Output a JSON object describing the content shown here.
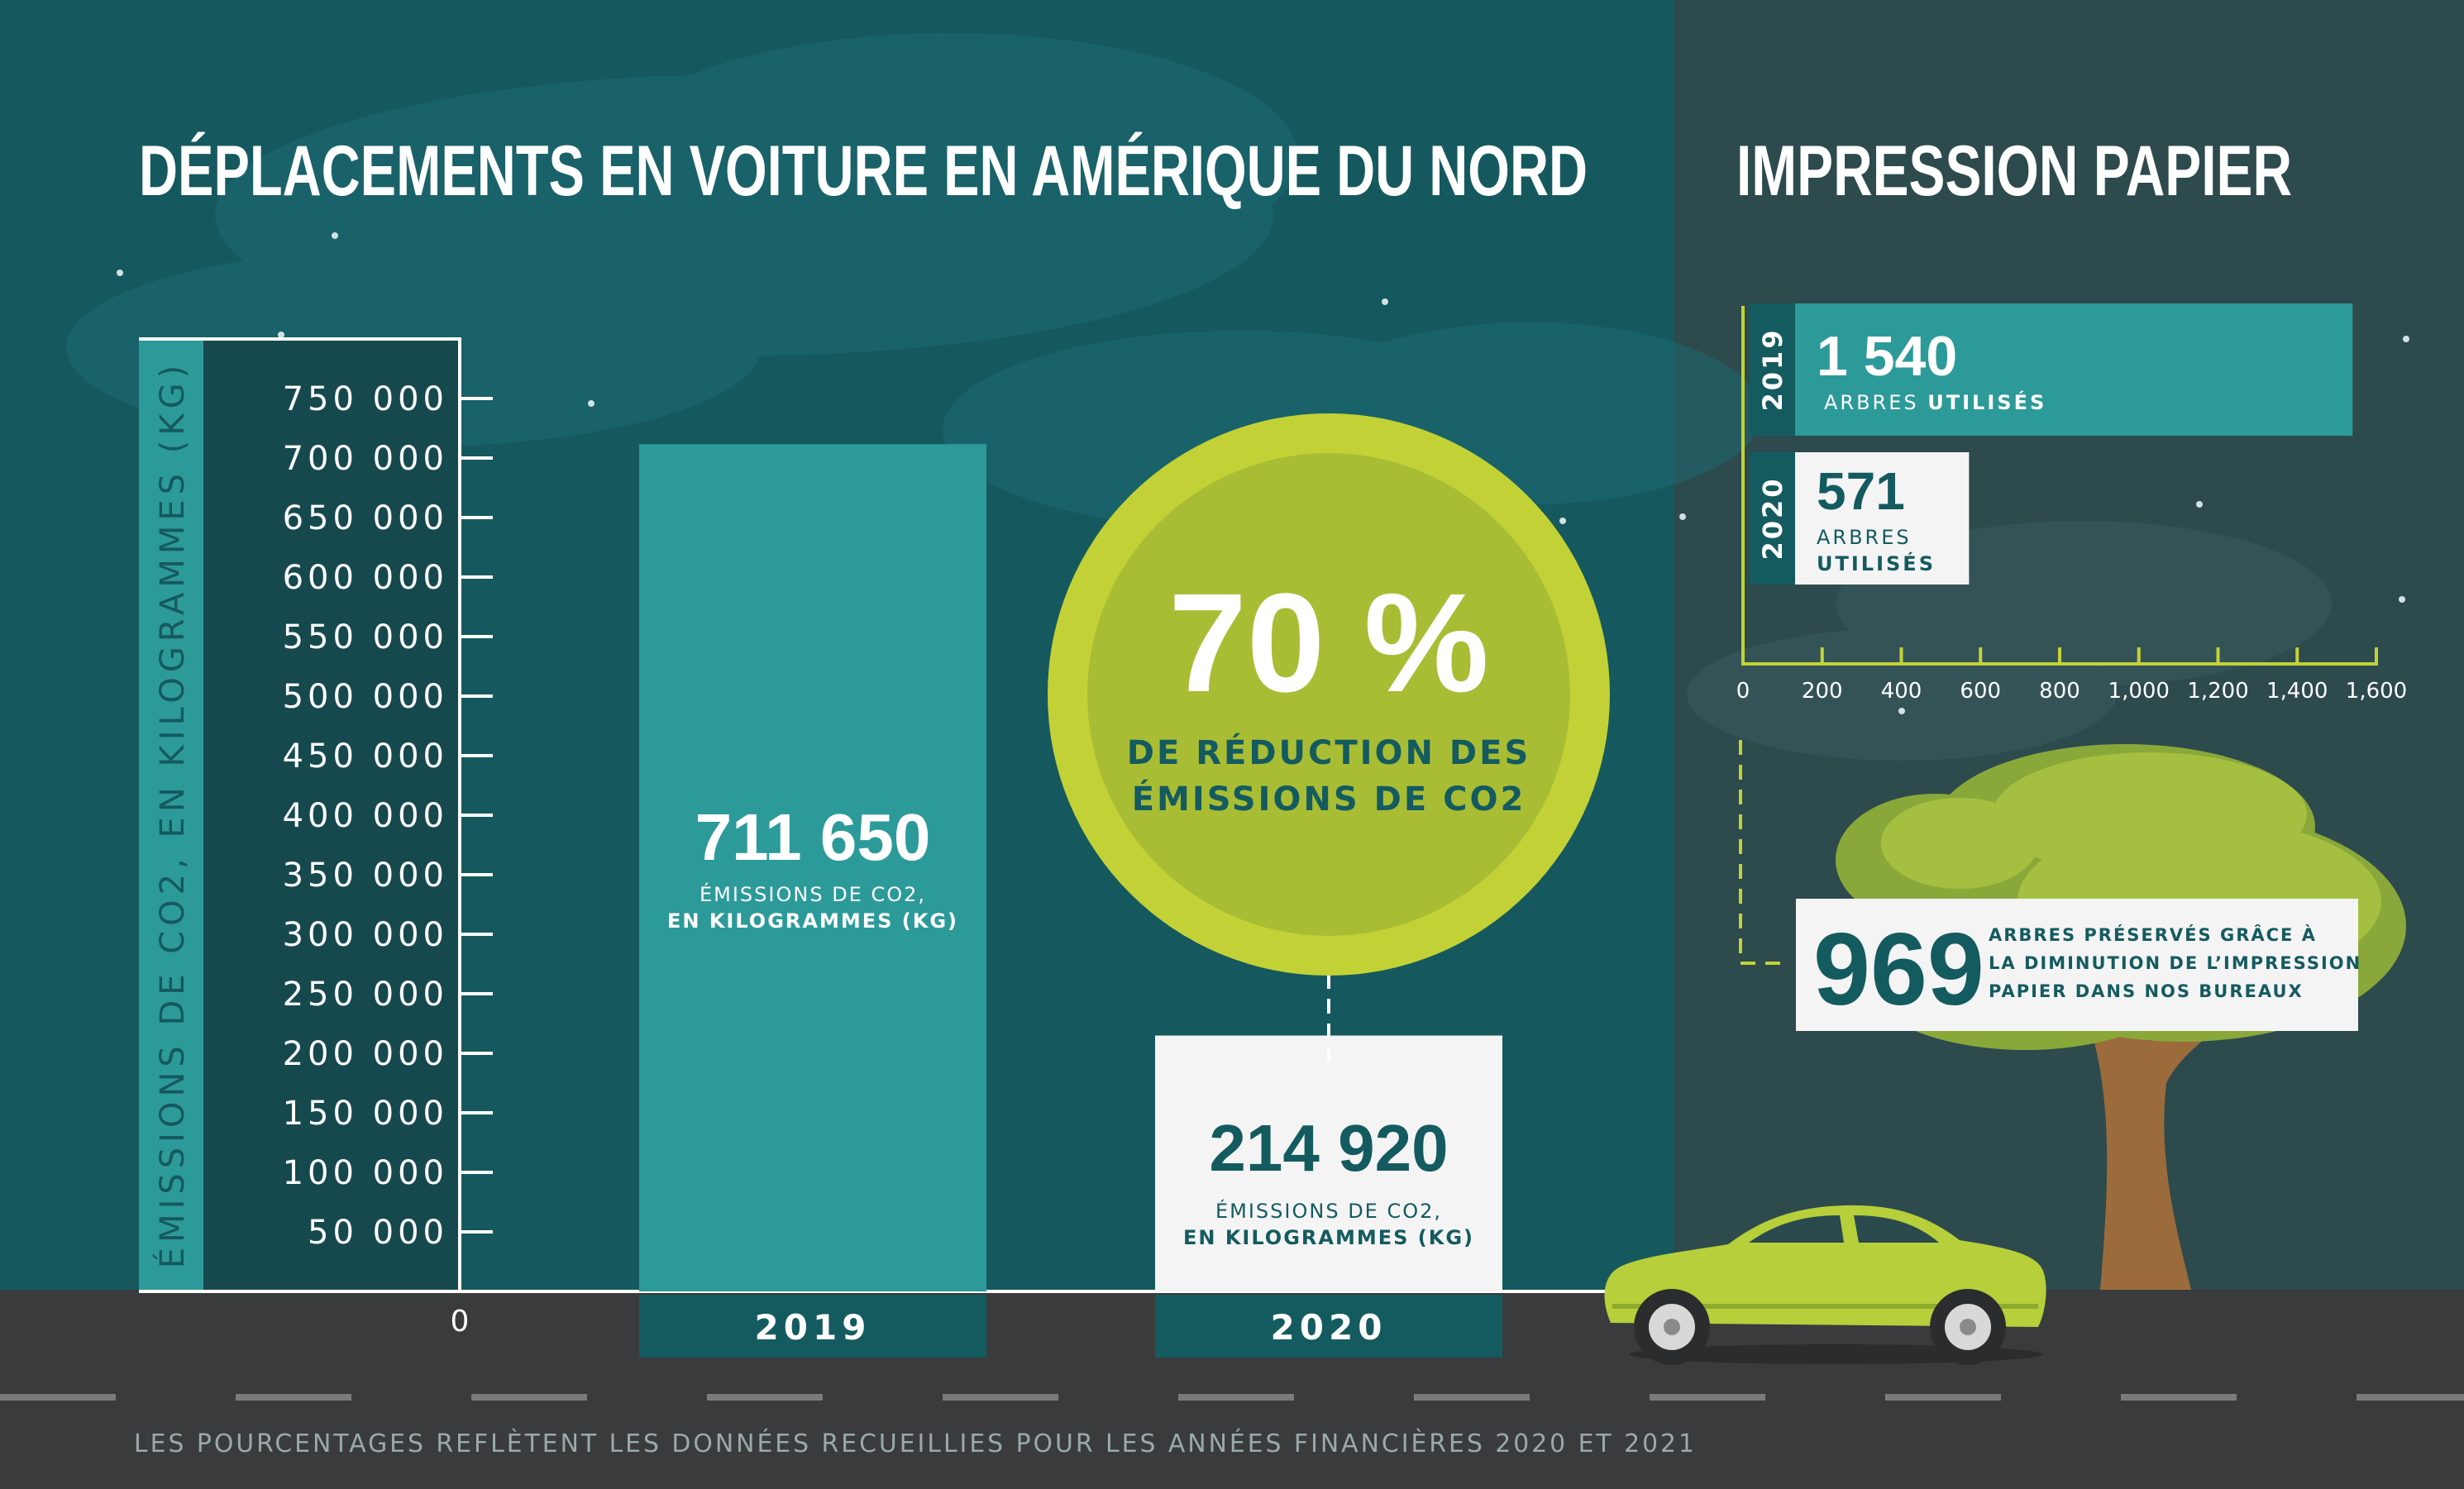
{
  "colors": {
    "bg_left": "#15595e",
    "bg_right": "#2d4a4d",
    "teal_bar": "#2d9a9a",
    "dark_teal": "#145b60",
    "lime": "#c2d236",
    "lime_inner": "#a8bd34",
    "road": "#3a3b3d",
    "white": "#ffffff",
    "label_box": "#f4f4f4"
  },
  "car_chart": {
    "title": "DÉPLACEMENTS EN VOITURE EN AMÉRIQUE DU NORD",
    "ylabel": "ÉMISSIONS DE CO2, EN KILOGRAMMES (KG)",
    "zero_label": "0",
    "bar_2019": {
      "year": "2019",
      "value_label": "711 650",
      "unit_line1": "ÉMISSIONS DE CO2,",
      "unit_line2": "EN KILOGRAMMES (KG)"
    },
    "bar_2020": {
      "year": "2020",
      "value_label": "214 920",
      "unit_line1": "ÉMISSIONS DE CO2,",
      "unit_line2": "EN KILOGRAMMES (KG)"
    },
    "reduction": {
      "percent": "70 %",
      "line1": "DE RÉDUCTION DES",
      "line2": "ÉMISSIONS DE CO2"
    }
  },
  "paper_chart": {
    "title": "IMPRESSION PAPIER",
    "bar_2019": {
      "year": "2019",
      "value_label": "1 540",
      "unit_a": "ARBRES ",
      "unit_b": "UTILISÉS"
    },
    "bar_2020": {
      "year": "2020",
      "value_label": "571",
      "unit_a": "ARBRES",
      "unit_b": "UTILISÉS"
    },
    "saved": {
      "value": "969",
      "line1": "ARBRES PRÉSERVÉS GRÂCE À",
      "line2": "LA DIMINUTION DE L’IMPRESSION",
      "line3": "PAPIER DANS NOS BUREAUX"
    }
  },
  "footnote": "LES POURCENTAGES REFLÈTENT LES DONNÉES RECUEILLIES POUR LES ANNÉES FINANCIÈRES 2020 ET 2021",
  "chart_data": [
    {
      "type": "bar",
      "title": "DÉPLACEMENTS EN VOITURE EN AMÉRIQUE DU NORD",
      "ylabel": "ÉMISSIONS DE CO2, EN KILOGRAMMES (KG)",
      "categories": [
        "2019",
        "2020"
      ],
      "values": [
        711650,
        214920
      ],
      "ylim": [
        0,
        750000
      ],
      "yticks": [
        50000,
        100000,
        150000,
        200000,
        250000,
        300000,
        350000,
        400000,
        450000,
        500000,
        550000,
        600000,
        650000,
        700000,
        750000
      ],
      "ytick_labels": [
        "50 000",
        "100 000",
        "150 000",
        "200 000",
        "250 000",
        "300 000",
        "350 000",
        "400 000",
        "450 000",
        "500 000",
        "550 000",
        "600 000",
        "650 000",
        "700 000",
        "750 000"
      ],
      "annotation": "70 % DE RÉDUCTION DES ÉMISSIONS DE CO2"
    },
    {
      "type": "bar",
      "orientation": "horizontal",
      "title": "IMPRESSION PAPIER",
      "categories": [
        "2019",
        "2020"
      ],
      "values": [
        1540,
        571
      ],
      "xlim": [
        0,
        1600
      ],
      "xticks": [
        0,
        200,
        400,
        600,
        800,
        1000,
        1200,
        1400,
        1600
      ],
      "xtick_labels": [
        "0",
        "200",
        "400",
        "600",
        "800",
        "1,000",
        "1,200",
        "1,400",
        "1,600"
      ],
      "annotation": "969 ARBRES PRÉSERVÉS GRÂCE À LA DIMINUTION DE L’IMPRESSION PAPIER DANS NOS BUREAUX"
    }
  ]
}
